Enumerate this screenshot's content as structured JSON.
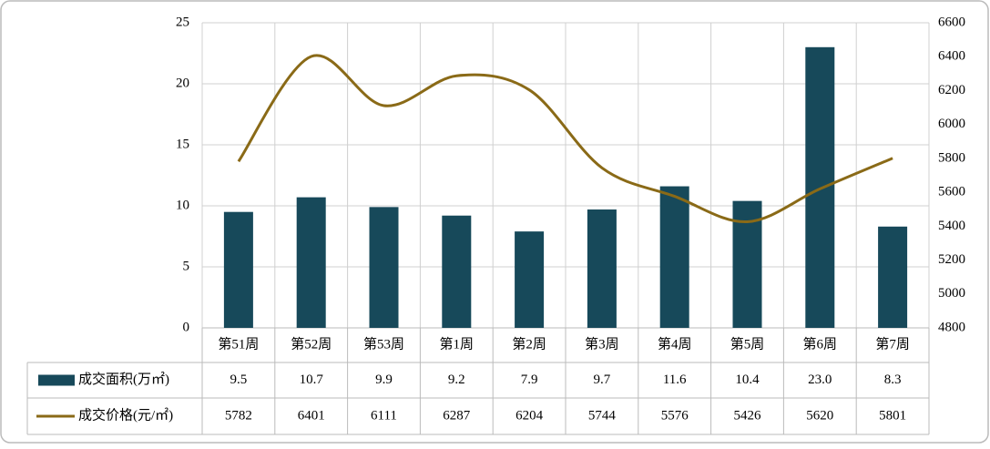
{
  "chart_data": {
    "type": "bar",
    "categories": [
      "第51周",
      "第52周",
      "第53周",
      "第1周",
      "第2周",
      "第3周",
      "第4周",
      "第5周",
      "第6周",
      "第7周"
    ],
    "series": [
      {
        "name": "成交面积(万㎡)",
        "type": "bar",
        "color": "#17495a",
        "values": [
          9.5,
          10.7,
          9.9,
          9.2,
          7.9,
          9.7,
          11.6,
          10.4,
          23.0,
          8.3
        ],
        "value_labels": [
          "9.5",
          "10.7",
          "9.9",
          "9.2",
          "7.9",
          "9.7",
          "11.6",
          "10.4",
          "23.0",
          "8.3"
        ]
      },
      {
        "name": "成交价格(元/㎡)",
        "type": "line",
        "axis": "y2",
        "color": "#8a6a17",
        "values": [
          5782,
          6401,
          6111,
          6287,
          6204,
          5744,
          5576,
          5426,
          5620,
          5801
        ]
      }
    ],
    "ylim": [
      0,
      25
    ],
    "yticks": [
      0,
      5,
      10,
      15,
      20,
      25
    ],
    "y2lim": [
      4800,
      6600
    ],
    "y2ticks": [
      4800,
      5000,
      5200,
      5400,
      5600,
      5800,
      6000,
      6200,
      6400,
      6600
    ],
    "grid": true
  }
}
